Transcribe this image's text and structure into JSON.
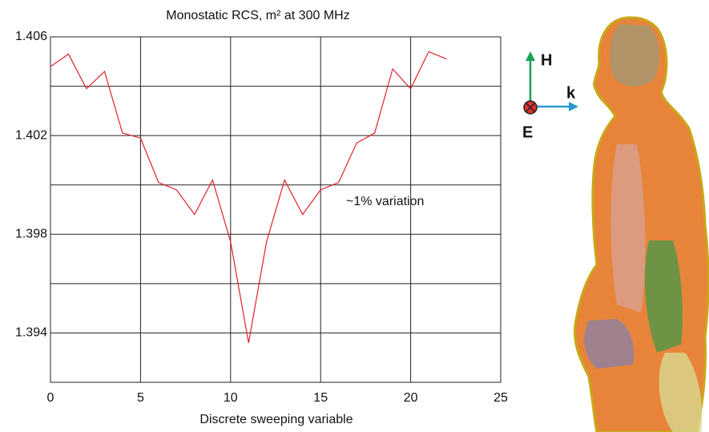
{
  "chart_data": {
    "type": "line",
    "title": "Monostatic RCS, m² at 300 MHz",
    "xlabel": "Discrete sweeping variable",
    "annotation": "~1% variation",
    "x": [
      0,
      1,
      2,
      3,
      4,
      5,
      6,
      7,
      8,
      9,
      10,
      11,
      12,
      13,
      14,
      15,
      16,
      17,
      18,
      19,
      20,
      21,
      22
    ],
    "series": [
      {
        "color": "#e0202a",
        "values": [
          1.4048,
          1.4053,
          1.4039,
          1.4046,
          1.4021,
          1.4019,
          1.4001,
          1.3998,
          1.3988,
          1.4002,
          1.3977,
          1.3936,
          1.3977,
          1.4002,
          1.3988,
          1.3998,
          1.4001,
          1.4017,
          1.4021,
          1.4047,
          1.4039,
          1.4054,
          1.4051
        ]
      }
    ],
    "xlim": [
      0,
      25
    ],
    "xticks": [
      0,
      5,
      10,
      15,
      20,
      25
    ],
    "ylim": [
      1.392,
      1.406
    ],
    "yticks": [
      1.394,
      1.398,
      1.402,
      1.406
    ],
    "yminor": [
      1.396,
      1.4,
      1.404
    ],
    "grid": true
  },
  "inset": {
    "field_labels": [
      "H",
      "k",
      "E"
    ]
  }
}
